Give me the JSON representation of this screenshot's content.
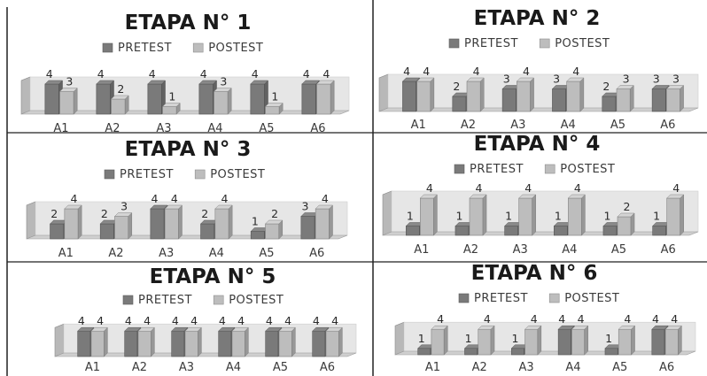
{
  "colors": {
    "pretest": "#7a7a7a",
    "postest": "#bdbdbd",
    "backwall": "#e6e6e6",
    "grid_lines": "#1f1f1f"
  },
  "chart_data": [
    {
      "type": "bar",
      "title": "ETAPA N° 1",
      "categories": [
        "A1",
        "A2",
        "A3",
        "A4",
        "A5",
        "A6"
      ],
      "series": [
        {
          "name": "PRETEST",
          "values": [
            4,
            4,
            4,
            4,
            4,
            4
          ]
        },
        {
          "name": "POSTEST",
          "values": [
            3,
            2,
            1,
            3,
            1,
            4
          ]
        }
      ],
      "ylim": [
        0,
        4
      ],
      "legend": "top",
      "grid": false
    },
    {
      "type": "bar",
      "title": "ETAPA N° 2",
      "categories": [
        "A1",
        "A2",
        "A3",
        "A4",
        "A5",
        "A6"
      ],
      "series": [
        {
          "name": "PRETEST",
          "values": [
            4,
            2,
            3,
            3,
            2,
            3
          ]
        },
        {
          "name": "POSTEST",
          "values": [
            4,
            4,
            4,
            4,
            3,
            3
          ]
        }
      ],
      "ylim": [
        0,
        4
      ],
      "legend": "top",
      "grid": false
    },
    {
      "type": "bar",
      "title": "ETAPA N° 3",
      "categories": [
        "A1",
        "A2",
        "A3",
        "A4",
        "A5",
        "A6"
      ],
      "series": [
        {
          "name": "PRETEST",
          "values": [
            2,
            2,
            4,
            2,
            1,
            3
          ]
        },
        {
          "name": "POSTEST",
          "values": [
            4,
            3,
            4,
            4,
            2,
            4
          ]
        }
      ],
      "ylim": [
        0,
        4
      ],
      "legend": "top",
      "grid": false
    },
    {
      "type": "bar",
      "title": "ETAPA N° 4",
      "categories": [
        "A1",
        "A2",
        "A3",
        "A4",
        "A5",
        "A6"
      ],
      "series": [
        {
          "name": "PRETEST",
          "values": [
            1,
            1,
            1,
            1,
            1,
            1
          ]
        },
        {
          "name": "POSTEST",
          "values": [
            4,
            4,
            4,
            4,
            2,
            4
          ]
        }
      ],
      "ylim": [
        0,
        4
      ],
      "legend": "top",
      "grid": false
    },
    {
      "type": "bar",
      "title": "ETAPA N° 5",
      "categories": [
        "A1",
        "A2",
        "A3",
        "A4",
        "A5",
        "A6"
      ],
      "series": [
        {
          "name": "PRETEST",
          "values": [
            4,
            4,
            4,
            4,
            4,
            4
          ]
        },
        {
          "name": "POSTEST",
          "values": [
            4,
            4,
            4,
            4,
            4,
            4
          ]
        }
      ],
      "ylim": [
        0,
        4
      ],
      "legend": "top",
      "grid": false
    },
    {
      "type": "bar",
      "title": "ETAPA N° 6",
      "categories": [
        "A1",
        "A2",
        "A3",
        "A4",
        "A5",
        "A6"
      ],
      "series": [
        {
          "name": "PRETEST",
          "values": [
            1,
            1,
            1,
            4,
            1,
            4
          ]
        },
        {
          "name": "POSTEST",
          "values": [
            4,
            4,
            4,
            4,
            4,
            4
          ]
        }
      ],
      "ylim": [
        0,
        4
      ],
      "legend": "top",
      "grid": false
    }
  ]
}
